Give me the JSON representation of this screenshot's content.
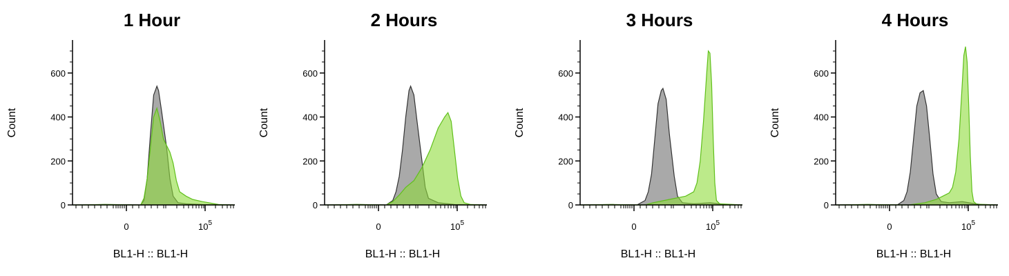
{
  "chart_data": [
    {
      "type": "area",
      "title": "1 Hour",
      "xlabel": "BL1-H :: BL1-H",
      "ylabel": "Count",
      "ylim": [
        0,
        750
      ],
      "yticks": [
        0,
        200,
        400,
        600
      ],
      "xticks": [
        {
          "label": "0"
        },
        {
          "label": "10",
          "sup": "5"
        }
      ],
      "series": [
        {
          "color": "#8c8c8c",
          "points": [
            [
              0,
              0
            ],
            [
              0.05,
              0
            ],
            [
              0.2,
              2
            ],
            [
              0.42,
              0
            ],
            [
              0.44,
              20
            ],
            [
              0.46,
              120
            ],
            [
              0.48,
              320
            ],
            [
              0.5,
              500
            ],
            [
              0.52,
              540
            ],
            [
              0.53,
              520
            ],
            [
              0.55,
              420
            ],
            [
              0.58,
              260
            ],
            [
              0.6,
              120
            ],
            [
              0.62,
              40
            ],
            [
              0.65,
              10
            ],
            [
              0.7,
              5
            ],
            [
              0.8,
              2
            ],
            [
              1,
              0
            ]
          ]
        },
        {
          "color": "#8fdc3c",
          "points": [
            [
              0,
              0
            ],
            [
              0.2,
              2
            ],
            [
              0.42,
              0
            ],
            [
              0.44,
              30
            ],
            [
              0.46,
              120
            ],
            [
              0.48,
              260
            ],
            [
              0.5,
              400
            ],
            [
              0.52,
              440
            ],
            [
              0.54,
              380
            ],
            [
              0.56,
              300
            ],
            [
              0.58,
              270
            ],
            [
              0.6,
              240
            ],
            [
              0.62,
              190
            ],
            [
              0.64,
              110
            ],
            [
              0.66,
              60
            ],
            [
              0.7,
              40
            ],
            [
              0.74,
              25
            ],
            [
              0.8,
              15
            ],
            [
              0.84,
              10
            ],
            [
              0.9,
              2
            ],
            [
              1,
              0
            ]
          ]
        }
      ]
    },
    {
      "type": "area",
      "title": "2 Hours",
      "xlabel": "BL1-H :: BL1-H",
      "ylabel": "Count",
      "ylim": [
        0,
        750
      ],
      "yticks": [
        0,
        200,
        400,
        600
      ],
      "xticks": [
        {
          "label": "0"
        },
        {
          "label": "10",
          "sup": "5"
        }
      ],
      "series": [
        {
          "color": "#8c8c8c",
          "points": [
            [
              0,
              0
            ],
            [
              0.2,
              2
            ],
            [
              0.38,
              0
            ],
            [
              0.42,
              20
            ],
            [
              0.44,
              60
            ],
            [
              0.46,
              130
            ],
            [
              0.48,
              250
            ],
            [
              0.5,
              400
            ],
            [
              0.52,
              520
            ],
            [
              0.53,
              540
            ],
            [
              0.55,
              500
            ],
            [
              0.57,
              380
            ],
            [
              0.6,
              200
            ],
            [
              0.62,
              80
            ],
            [
              0.64,
              30
            ],
            [
              0.7,
              10
            ],
            [
              0.8,
              2
            ],
            [
              1,
              0
            ]
          ]
        },
        {
          "color": "#8fdc3c",
          "points": [
            [
              0,
              0
            ],
            [
              0.2,
              2
            ],
            [
              0.38,
              0
            ],
            [
              0.42,
              15
            ],
            [
              0.46,
              45
            ],
            [
              0.5,
              80
            ],
            [
              0.55,
              110
            ],
            [
              0.6,
              170
            ],
            [
              0.65,
              250
            ],
            [
              0.7,
              350
            ],
            [
              0.74,
              400
            ],
            [
              0.76,
              420
            ],
            [
              0.78,
              380
            ],
            [
              0.8,
              250
            ],
            [
              0.82,
              120
            ],
            [
              0.84,
              40
            ],
            [
              0.86,
              10
            ],
            [
              0.9,
              2
            ],
            [
              1,
              0
            ]
          ]
        }
      ]
    },
    {
      "type": "area",
      "title": "3 Hours",
      "xlabel": "BL1-H :: BL1-H",
      "ylabel": "Count",
      "ylim": [
        0,
        750
      ],
      "yticks": [
        0,
        200,
        400,
        600
      ],
      "xticks": [
        {
          "label": "0"
        },
        {
          "label": "10",
          "sup": "5"
        }
      ],
      "series": [
        {
          "color": "#8c8c8c",
          "points": [
            [
              0,
              0
            ],
            [
              0.2,
              2
            ],
            [
              0.35,
              0
            ],
            [
              0.4,
              20
            ],
            [
              0.42,
              60
            ],
            [
              0.44,
              140
            ],
            [
              0.46,
              300
            ],
            [
              0.48,
              460
            ],
            [
              0.5,
              520
            ],
            [
              0.51,
              530
            ],
            [
              0.53,
              480
            ],
            [
              0.55,
              320
            ],
            [
              0.58,
              130
            ],
            [
              0.6,
              40
            ],
            [
              0.63,
              10
            ],
            [
              0.7,
              5
            ],
            [
              0.8,
              10
            ],
            [
              0.86,
              5
            ],
            [
              0.9,
              2
            ],
            [
              1,
              0
            ]
          ]
        },
        {
          "color": "#8fdc3c",
          "points": [
            [
              0,
              0
            ],
            [
              0.2,
              2
            ],
            [
              0.4,
              0
            ],
            [
              0.45,
              10
            ],
            [
              0.55,
              25
            ],
            [
              0.65,
              40
            ],
            [
              0.7,
              60
            ],
            [
              0.72,
              100
            ],
            [
              0.74,
              200
            ],
            [
              0.76,
              380
            ],
            [
              0.78,
              600
            ],
            [
              0.79,
              700
            ],
            [
              0.8,
              690
            ],
            [
              0.81,
              550
            ],
            [
              0.82,
              300
            ],
            [
              0.83,
              100
            ],
            [
              0.84,
              20
            ],
            [
              0.86,
              5
            ],
            [
              1,
              0
            ]
          ]
        }
      ]
    },
    {
      "type": "area",
      "title": "4 Hours",
      "xlabel": "BL1-H :: BL1-H",
      "ylabel": "Count",
      "ylim": [
        0,
        750
      ],
      "yticks": [
        0,
        200,
        400,
        600
      ],
      "xticks": [
        {
          "label": "0"
        },
        {
          "label": "10",
          "sup": "5"
        }
      ],
      "series": [
        {
          "color": "#8c8c8c",
          "points": [
            [
              0,
              0
            ],
            [
              0.2,
              2
            ],
            [
              0.38,
              0
            ],
            [
              0.42,
              20
            ],
            [
              0.44,
              60
            ],
            [
              0.46,
              150
            ],
            [
              0.48,
              300
            ],
            [
              0.5,
              450
            ],
            [
              0.52,
              510
            ],
            [
              0.54,
              520
            ],
            [
              0.56,
              450
            ],
            [
              0.58,
              300
            ],
            [
              0.6,
              140
            ],
            [
              0.62,
              50
            ],
            [
              0.65,
              15
            ],
            [
              0.7,
              10
            ],
            [
              0.78,
              15
            ],
            [
              0.86,
              5
            ],
            [
              0.9,
              2
            ],
            [
              1,
              0
            ]
          ]
        },
        {
          "color": "#8fdc3c",
          "points": [
            [
              0,
              0
            ],
            [
              0.2,
              2
            ],
            [
              0.45,
              0
            ],
            [
              0.55,
              10
            ],
            [
              0.62,
              25
            ],
            [
              0.66,
              40
            ],
            [
              0.7,
              55
            ],
            [
              0.72,
              80
            ],
            [
              0.74,
              150
            ],
            [
              0.76,
              300
            ],
            [
              0.78,
              550
            ],
            [
              0.79,
              680
            ],
            [
              0.8,
              720
            ],
            [
              0.81,
              650
            ],
            [
              0.82,
              450
            ],
            [
              0.83,
              220
            ],
            [
              0.84,
              60
            ],
            [
              0.85,
              15
            ],
            [
              0.87,
              3
            ],
            [
              1,
              0
            ]
          ]
        }
      ]
    }
  ]
}
